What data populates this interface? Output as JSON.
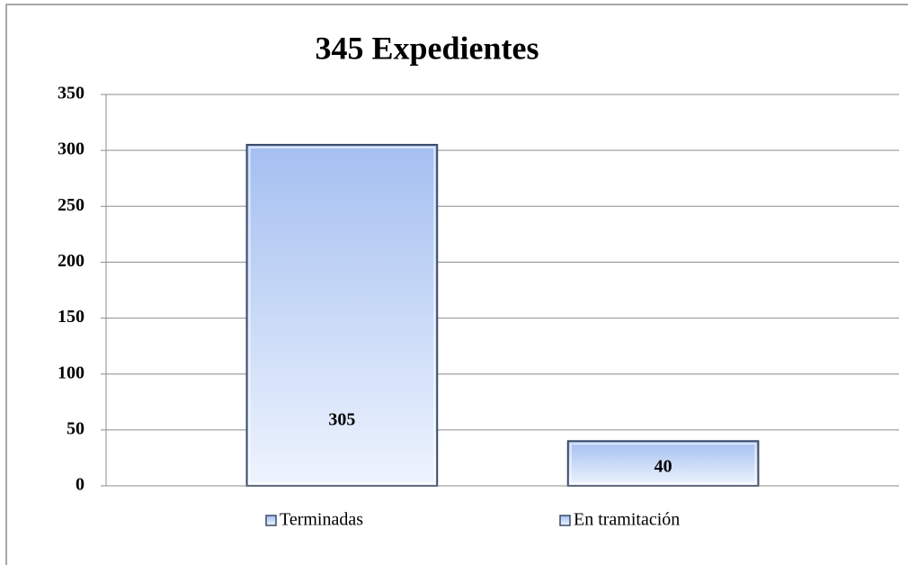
{
  "chart_data": {
    "type": "bar",
    "title": "345 Expedientes",
    "categories": [
      null
    ],
    "series": [
      {
        "name": "Terminadas",
        "color": "#a4bff0",
        "values": [
          305
        ],
        "value_labels": [
          "305"
        ]
      },
      {
        "name": "En tramitación",
        "color": "#a4bff0",
        "values": [
          40
        ],
        "value_labels": [
          "40"
        ]
      }
    ],
    "ylim": [
      0,
      350
    ],
    "yticks": [
      0,
      50,
      100,
      150,
      200,
      250,
      300,
      350
    ],
    "grid": true,
    "legend": "bottom"
  }
}
